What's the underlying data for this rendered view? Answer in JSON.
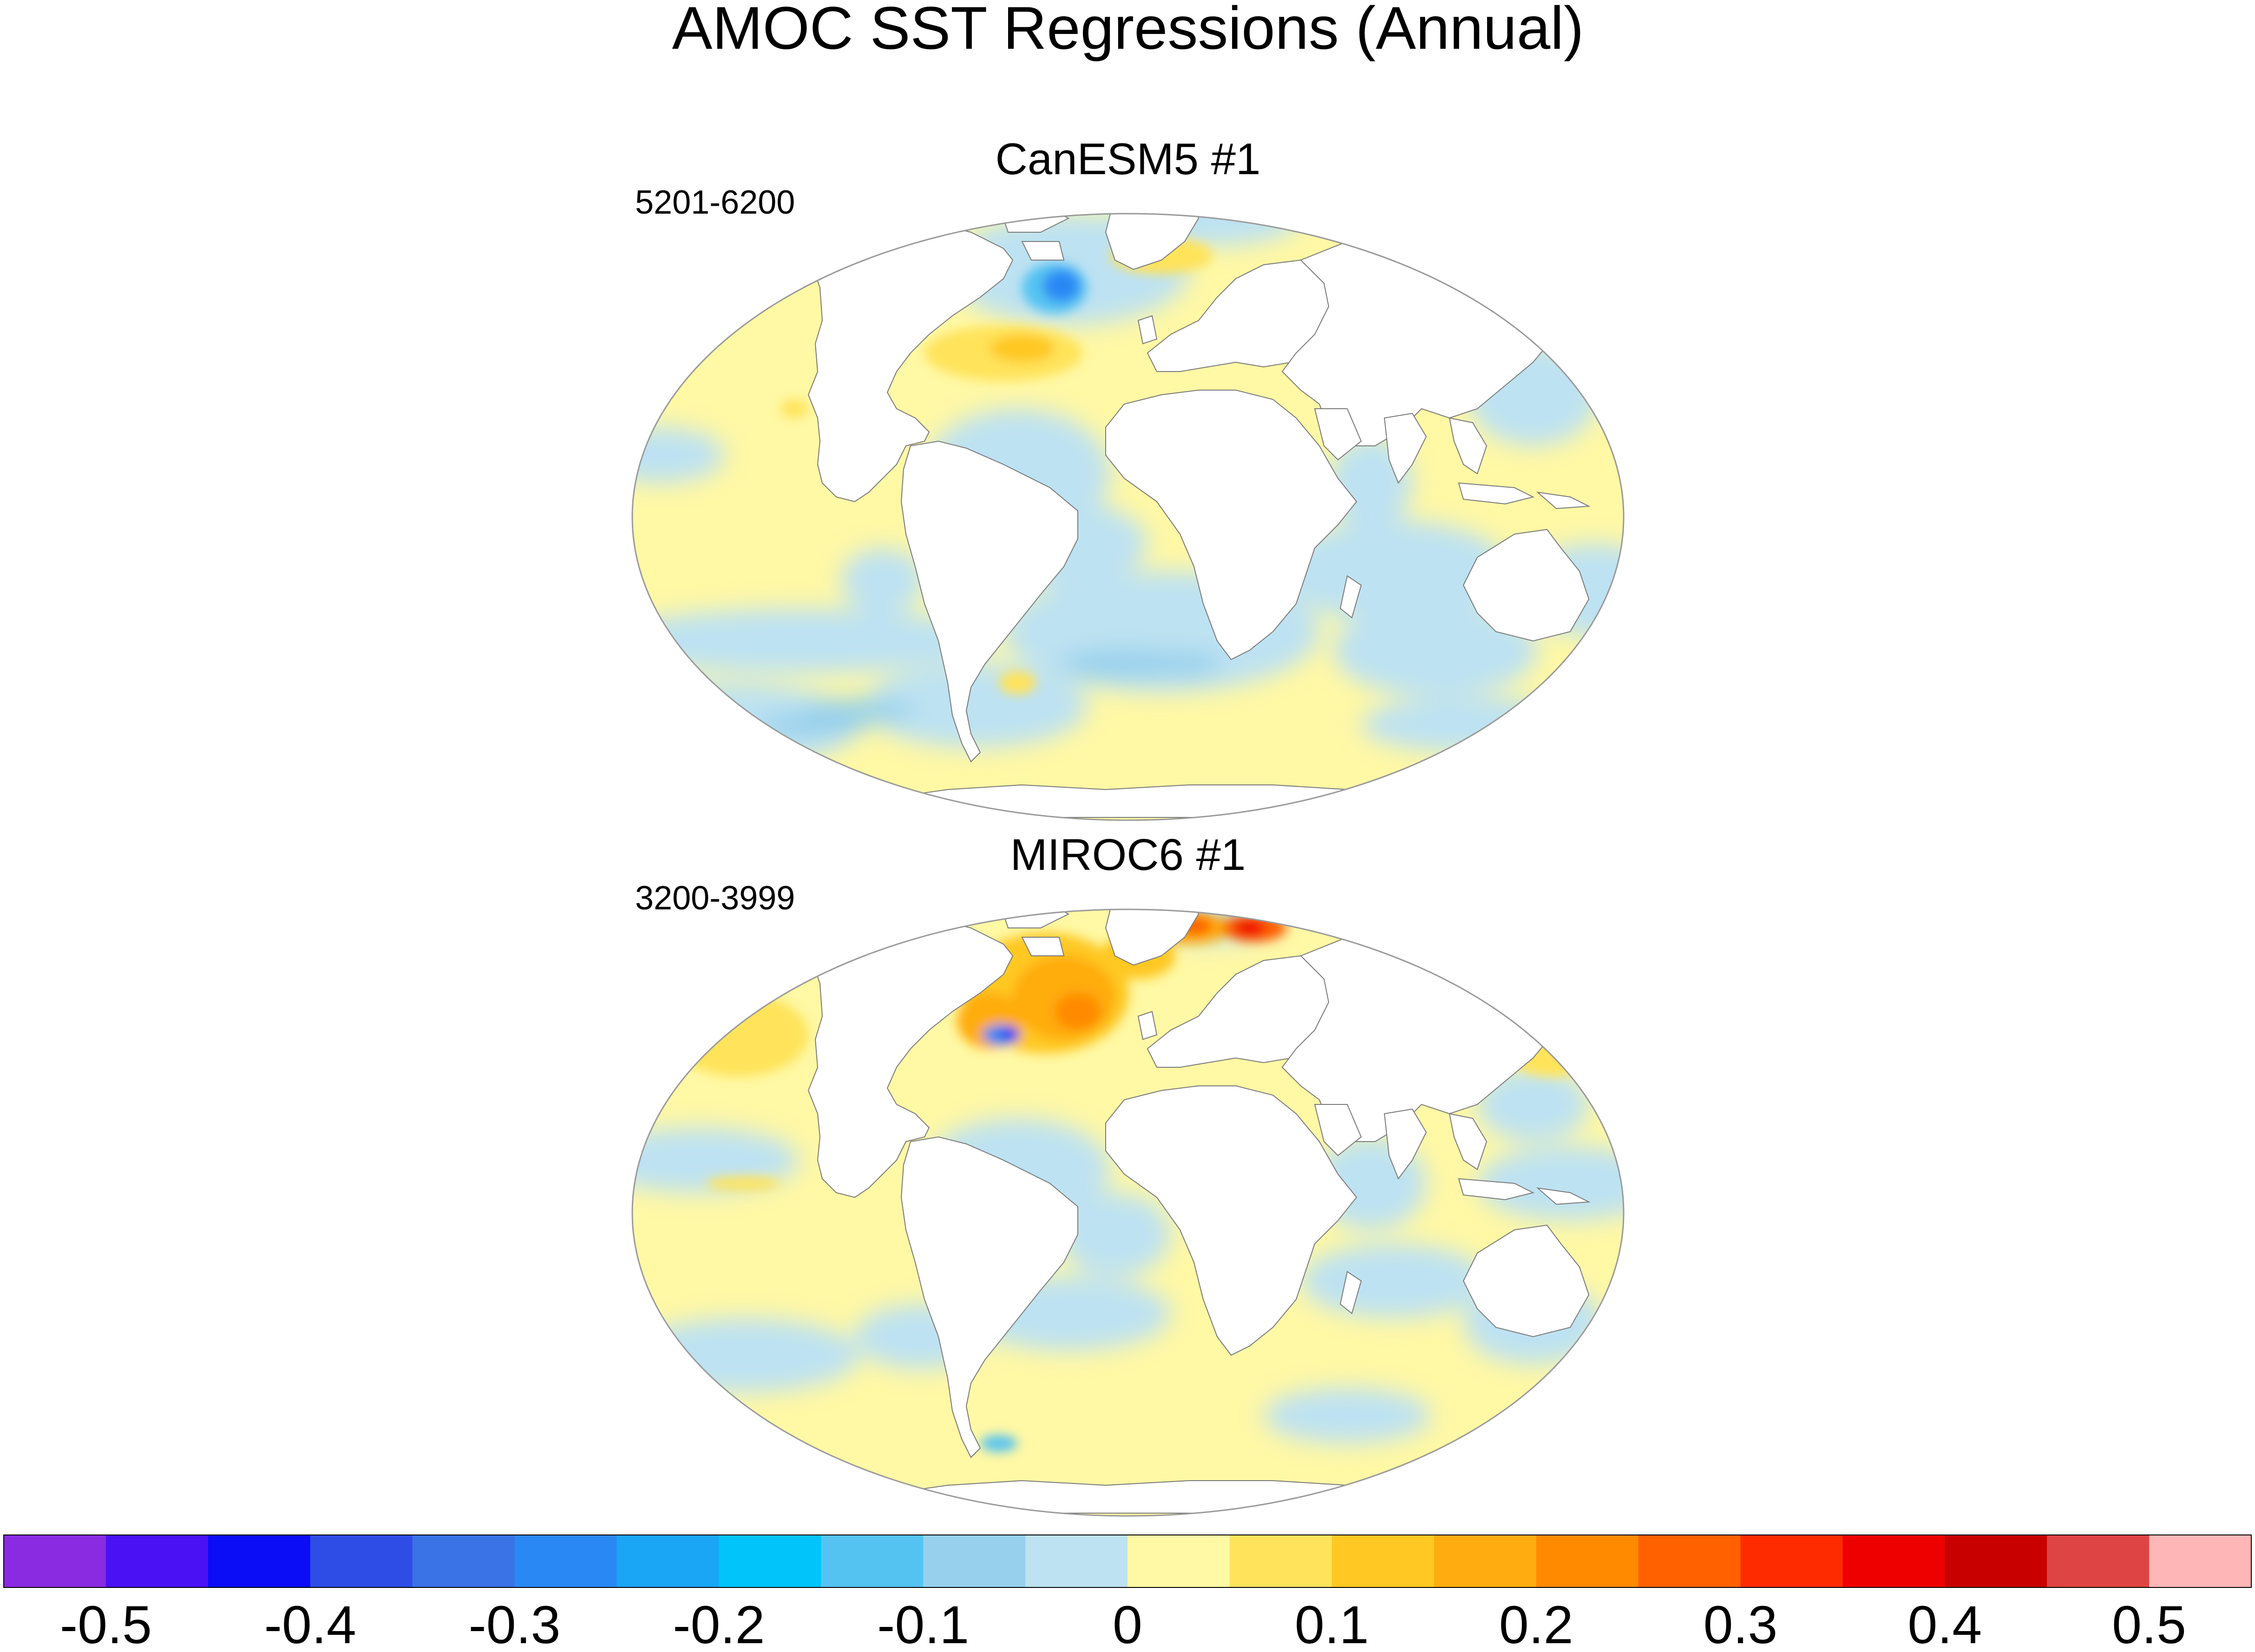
{
  "chart_data": {
    "type": "heatmap",
    "title": "AMOC SST Regressions (Annual)",
    "projection": "Winkel tripel (global)",
    "panels": [
      {
        "title": "CanESM5 #1",
        "years": "5201-6200",
        "features": [
          {
            "region": "Labrador Sea",
            "value": -0.25
          },
          {
            "region": "Gulf Stream extension",
            "value": 0.15
          },
          {
            "region": "Barents Sea",
            "value": 0.1
          },
          {
            "region": "Kuroshio extension",
            "value": 0.08
          },
          {
            "region": "Tropical Atlantic",
            "value": -0.05
          },
          {
            "region": "Southern Ocean (Atlantic sector)",
            "value": -0.12
          },
          {
            "region": "Southern Ocean (Pacific sector)",
            "value": -0.1
          },
          {
            "region": "Pacific subtropics",
            "value": 0.03
          }
        ]
      },
      {
        "title": "MIROC6 #1",
        "years": "3200-3999",
        "features": [
          {
            "region": "Subpolar North Atlantic",
            "value": 0.22
          },
          {
            "region": "Gulf Stream separation",
            "value": -0.45
          },
          {
            "region": "Barents Sea",
            "value": 0.35
          },
          {
            "region": "Kara Sea",
            "value": 0.25
          },
          {
            "region": "North Pacific subtropics",
            "value": 0.1
          },
          {
            "region": "Kuroshio extension",
            "value": 0.12
          },
          {
            "region": "Tropical Atlantic",
            "value": -0.05
          },
          {
            "region": "Southern Ocean (Atlantic sector)",
            "value": -0.05
          },
          {
            "region": "Drake Passage",
            "value": -0.2
          }
        ]
      }
    ],
    "colorbar": {
      "range": [
        -0.55,
        0.55
      ],
      "step": 0.05,
      "colors": [
        "#8a2be2",
        "#4a11f5",
        "#0a0df5",
        "#2e4de6",
        "#3a73e6",
        "#2a88f5",
        "#1aa5f5",
        "#00c4fa",
        "#55c3f2",
        "#96d0ec",
        "#bde2f2",
        "#fff8a5",
        "#ffe35a",
        "#ffc822",
        "#ffac10",
        "#ff8a00",
        "#ff6100",
        "#ff2b00",
        "#ef0000",
        "#c90000",
        "#df4444",
        "#ffb6b6"
      ],
      "tick_labels": [
        "-0.5",
        "-0.4",
        "-0.3",
        "-0.2",
        "-0.1",
        "0",
        "0.1",
        "0.2",
        "0.3",
        "0.4",
        "0.5"
      ]
    }
  }
}
